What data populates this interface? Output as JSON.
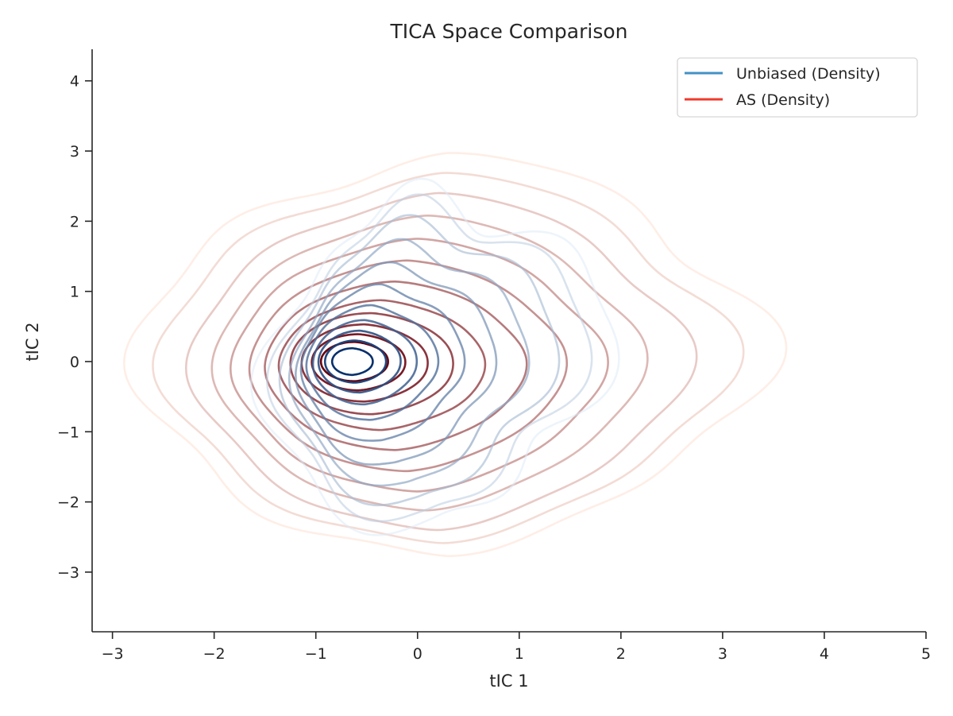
{
  "chart_data": {
    "type": "contour",
    "title": "TICA Space Comparison",
    "xlabel": "tIC 1",
    "ylabel": "tIC 2",
    "xlim": [
      -3.2,
      5.0
    ],
    "ylim": [
      -3.85,
      4.45
    ],
    "xticks": [
      -3,
      -2,
      -1,
      0,
      1,
      2,
      3,
      4,
      5
    ],
    "yticks": [
      -3,
      -2,
      -1,
      0,
      1,
      2,
      3,
      4
    ],
    "grid": false,
    "legend_position": "top-right",
    "series": [
      {
        "name": "Unbiased (Density)",
        "legend_color": "#4292c6",
        "color_light": "#deebf7",
        "color_dark": "#08306b",
        "peak": [
          -0.65,
          0.0
        ],
        "levels": [
          {
            "center": [
              0.15,
              0.0
            ],
            "rx": 1.5,
            "ry": 2.5,
            "shape": [
              [
                0.0,
                0.0
              ],
              [
                0.18,
                0.6
              ],
              [
                0.08,
                0.05
              ],
              [
                0.1,
                0.3
              ],
              [
                -0.05,
                0.15
              ],
              [
                0.05,
                -0.05
              ],
              [
                0.03,
                -0.35
              ],
              [
                0.05,
                0.0
              ]
            ]
          },
          {
            "center": [
              0.1,
              0.0
            ],
            "rx": 1.35,
            "ry": 2.3,
            "shape": [
              [
                0.0,
                0.0
              ],
              [
                0.15,
                0.55
              ],
              [
                0.07,
                0.05
              ],
              [
                0.1,
                0.25
              ],
              [
                -0.04,
                0.12
              ],
              [
                0.05,
                -0.05
              ],
              [
                0.02,
                -0.3
              ],
              [
                0.04,
                0.0
              ]
            ]
          },
          {
            "center": [
              0.0,
              -0.02
            ],
            "rx": 1.2,
            "ry": 2.05,
            "shape": [
              [
                0.0,
                0.0
              ],
              [
                0.12,
                0.5
              ],
              [
                0.06,
                0.05
              ],
              [
                0.08,
                0.2
              ],
              [
                -0.03,
                0.1
              ],
              [
                0.04,
                -0.05
              ],
              [
                0.02,
                -0.25
              ],
              [
                0.03,
                0.0
              ]
            ]
          },
          {
            "center": [
              -0.1,
              -0.05
            ],
            "rx": 1.05,
            "ry": 1.75,
            "shape": [
              [
                0.0,
                0.0
              ],
              [
                0.1,
                0.42
              ],
              [
                0.05,
                0.05
              ],
              [
                0.07,
                0.18
              ],
              [
                -0.02,
                0.08
              ],
              [
                0.03,
                -0.04
              ],
              [
                0.02,
                -0.2
              ],
              [
                0.03,
                0.0
              ]
            ]
          },
          {
            "center": [
              -0.22,
              -0.05
            ],
            "rx": 0.9,
            "ry": 1.45,
            "shape": [
              [
                0.0,
                0.0
              ],
              [
                0.08,
                0.35
              ],
              [
                0.04,
                0.04
              ],
              [
                0.05,
                0.15
              ],
              [
                -0.02,
                0.06
              ],
              [
                0.03,
                -0.03
              ],
              [
                0.01,
                -0.15
              ],
              [
                0.02,
                0.0
              ]
            ]
          },
          {
            "center": [
              -0.35,
              -0.03
            ],
            "rx": 0.75,
            "ry": 1.12,
            "shape": [
              [
                0.0,
                0.0
              ],
              [
                0.06,
                0.25
              ],
              [
                0.03,
                0.03
              ],
              [
                0.04,
                0.1
              ],
              [
                -0.01,
                0.05
              ],
              [
                0.02,
                -0.02
              ],
              [
                0.01,
                -0.1
              ],
              [
                0.02,
                0.0
              ]
            ]
          },
          {
            "center": [
              -0.45,
              -0.02
            ],
            "rx": 0.62,
            "ry": 0.82,
            "shape": [
              [
                0.0,
                0.0
              ],
              [
                0.04,
                0.15
              ],
              [
                0.02,
                0.02
              ],
              [
                0.03,
                0.06
              ],
              [
                0,
                0.03
              ],
              [
                0.01,
                -0.01
              ],
              [
                0,
                -0.05
              ],
              [
                0.01,
                0.0
              ]
            ]
          },
          {
            "center": [
              -0.52,
              -0.01
            ],
            "rx": 0.5,
            "ry": 0.6,
            "shape": [
              [
                0,
                0
              ],
              [
                0.02,
                0.08
              ],
              [
                0.01,
                0.01
              ],
              [
                0.02,
                0.03
              ],
              [
                0,
                0
              ],
              [
                0,
                0
              ],
              [
                0,
                -0.02
              ],
              [
                0,
                0
              ]
            ]
          },
          {
            "center": [
              -0.57,
              0.0
            ],
            "rx": 0.4,
            "ry": 0.44,
            "shape": [
              [
                0,
                0
              ],
              [
                0.01,
                0.04
              ],
              [
                0,
                0
              ],
              [
                0.01,
                0.01
              ],
              [
                0,
                0
              ],
              [
                0,
                0
              ],
              [
                0,
                0
              ],
              [
                0,
                0
              ]
            ]
          },
          {
            "center": [
              -0.61,
              0.0
            ],
            "rx": 0.3,
            "ry": 0.3,
            "shape": [
              [
                0,
                0
              ],
              [
                0,
                0
              ],
              [
                0,
                0
              ],
              [
                0,
                0
              ],
              [
                0,
                0
              ],
              [
                0,
                0
              ],
              [
                0,
                0
              ],
              [
                0,
                0
              ]
            ]
          },
          {
            "center": [
              -0.64,
              0.0
            ],
            "rx": 0.2,
            "ry": 0.19,
            "shape": [
              [
                0,
                0
              ],
              [
                0,
                0
              ],
              [
                0,
                0
              ],
              [
                0,
                0
              ],
              [
                0,
                0
              ],
              [
                0,
                0
              ],
              [
                0,
                0
              ],
              [
                0,
                0
              ]
            ]
          }
        ]
      },
      {
        "name": "AS (Density)",
        "legend_color": "#ef3b2c",
        "color_light": "#fee0d2",
        "color_dark": "#67000d",
        "peak": [
          -0.65,
          0.0
        ],
        "levels": [
          {
            "center": [
              0.3,
              0.1
            ],
            "rx": 2.85,
            "ry": 2.9,
            "shape": [
              [
                0.0,
                0.0
              ],
              [
                0.1,
                0.15
              ],
              [
                0.0,
                0.0
              ],
              [
                0.08,
                -0.1
              ],
              [
                0.05,
                0.0
              ],
              [
                0.05,
                0.05
              ],
              [
                0.0,
                0.0
              ],
              [
                0.05,
                0.1
              ]
            ]
          },
          {
            "center": [
              0.25,
              0.05
            ],
            "rx": 2.6,
            "ry": 2.65,
            "shape": [
              [
                0.0,
                0.0
              ],
              [
                0.08,
                0.12
              ],
              [
                0.0,
                0.0
              ],
              [
                0.07,
                -0.08
              ],
              [
                0.04,
                0.0
              ],
              [
                0.04,
                0.05
              ],
              [
                0.0,
                0.0
              ],
              [
                0.04,
                0.08
              ]
            ]
          },
          {
            "center": [
              0.2,
              0.0
            ],
            "rx": 2.3,
            "ry": 2.4,
            "shape": [
              [
                0.0,
                0.0
              ],
              [
                0.06,
                0.1
              ],
              [
                0.0,
                0.0
              ],
              [
                0.06,
                -0.06
              ],
              [
                0.03,
                0.0
              ],
              [
                0.03,
                0.04
              ],
              [
                0.0,
                0.0
              ],
              [
                0.03,
                0.06
              ]
            ]
          },
          {
            "center": [
              0.1,
              -0.02
            ],
            "rx": 2.0,
            "ry": 2.1,
            "shape": [
              [
                0.0,
                0.0
              ],
              [
                0.05,
                0.08
              ],
              [
                0.0,
                0.0
              ],
              [
                0.05,
                -0.05
              ],
              [
                0.02,
                0.0
              ],
              [
                0.02,
                0.03
              ],
              [
                0.0,
                0.0
              ],
              [
                0.02,
                0.05
              ]
            ]
          },
          {
            "center": [
              0.0,
              -0.05
            ],
            "rx": 1.75,
            "ry": 1.8,
            "shape": [
              [
                0.0,
                0.0
              ],
              [
                0.04,
                0.06
              ],
              [
                0.0,
                0.0
              ],
              [
                0.04,
                -0.04
              ],
              [
                0.02,
                0.0
              ],
              [
                0.02,
                0.02
              ],
              [
                0.0,
                0.0
              ],
              [
                0.02,
                0.04
              ]
            ]
          },
          {
            "center": [
              -0.1,
              -0.06
            ],
            "rx": 1.5,
            "ry": 1.5,
            "shape": [
              [
                0,
                0
              ],
              [
                0.03,
                0.05
              ],
              [
                0,
                0
              ],
              [
                0.03,
                -0.03
              ],
              [
                0.01,
                0
              ],
              [
                0.01,
                0.02
              ],
              [
                0,
                0
              ],
              [
                0.01,
                0.03
              ]
            ]
          },
          {
            "center": [
              -0.22,
              -0.06
            ],
            "rx": 1.25,
            "ry": 1.2,
            "shape": [
              [
                0,
                0
              ],
              [
                0.02,
                0.04
              ],
              [
                0,
                0
              ],
              [
                0.02,
                -0.02
              ],
              [
                0.01,
                0
              ],
              [
                0.01,
                0.01
              ],
              [
                0,
                0
              ],
              [
                0.01,
                0.02
              ]
            ]
          },
          {
            "center": [
              -0.35,
              -0.05
            ],
            "rx": 1.0,
            "ry": 0.92,
            "shape": [
              [
                0,
                0
              ],
              [
                0.01,
                0.03
              ],
              [
                0,
                0
              ],
              [
                0.01,
                -0.01
              ],
              [
                0,
                0
              ],
              [
                0,
                0
              ],
              [
                0,
                0
              ],
              [
                0.01,
                0.01
              ]
            ]
          },
          {
            "center": [
              -0.45,
              -0.03
            ],
            "rx": 0.8,
            "ry": 0.72,
            "shape": [
              [
                0,
                0
              ],
              [
                0,
                0
              ],
              [
                0,
                0
              ],
              [
                0,
                0
              ],
              [
                0,
                0
              ],
              [
                0,
                0
              ],
              [
                0,
                0
              ],
              [
                0,
                0
              ]
            ]
          },
          {
            "center": [
              -0.52,
              -0.02
            ],
            "rx": 0.62,
            "ry": 0.55,
            "shape": [
              [
                0,
                0
              ],
              [
                0,
                0
              ],
              [
                0,
                0
              ],
              [
                0,
                0
              ],
              [
                0,
                0
              ],
              [
                0,
                0
              ],
              [
                0,
                0
              ],
              [
                0,
                0
              ]
            ]
          },
          {
            "center": [
              -0.58,
              -0.01
            ],
            "rx": 0.46,
            "ry": 0.4,
            "shape": [
              [
                0,
                0
              ],
              [
                0,
                0
              ],
              [
                0,
                0
              ],
              [
                0,
                0
              ],
              [
                0,
                0
              ],
              [
                0,
                0
              ],
              [
                0,
                0
              ],
              [
                0,
                0
              ]
            ]
          },
          {
            "center": [
              -0.62,
              0.0
            ],
            "rx": 0.33,
            "ry": 0.28,
            "shape": [
              [
                0,
                0
              ],
              [
                0,
                0
              ],
              [
                0,
                0
              ],
              [
                0,
                0
              ],
              [
                0,
                0
              ],
              [
                0,
                0
              ],
              [
                0,
                0
              ],
              [
                0,
                0
              ]
            ]
          }
        ]
      }
    ]
  }
}
